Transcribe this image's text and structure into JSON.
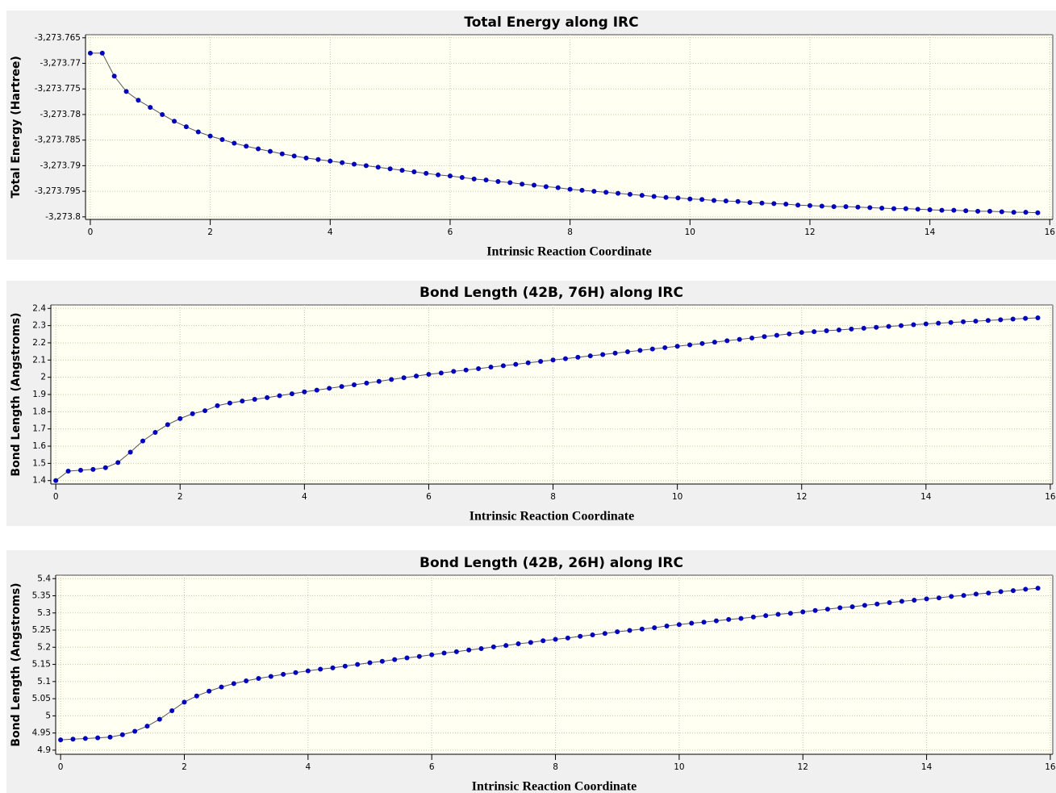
{
  "chart_data": [
    {
      "type": "line",
      "title": "Total Energy along IRC",
      "xlabel": "Intrinsic Reaction Coordinate",
      "ylabel": "Total Energy (Hartree)",
      "color": "#0000cc",
      "line_color": "#555555",
      "grid": true,
      "xlim": [
        -0.08,
        16.05
      ],
      "xticks": [
        0,
        2,
        4,
        6,
        8,
        10,
        12,
        14,
        16
      ],
      "ylim": [
        -3273.8005,
        -3273.7644
      ],
      "yticks": [
        {
          "value": -3273.765,
          "label": "-3,273.765"
        },
        {
          "value": -3273.77,
          "label": "-3,273.77"
        },
        {
          "value": -3273.775,
          "label": "-3,273.775"
        },
        {
          "value": -3273.78,
          "label": "-3,273.78"
        },
        {
          "value": -3273.785,
          "label": "-3,273.785"
        },
        {
          "value": -3273.79,
          "label": "-3,273.79"
        },
        {
          "value": -3273.795,
          "label": "-3,273.795"
        },
        {
          "value": -3273.8,
          "label": "-3,273.8"
        }
      ],
      "x": [
        0,
        0.2,
        0.4,
        0.6,
        0.8,
        1,
        1.2,
        1.4,
        1.6,
        1.8,
        2,
        2.2,
        2.4,
        2.6,
        2.8,
        3,
        3.2,
        3.4,
        3.6,
        3.8,
        4,
        4.2,
        4.4,
        4.6,
        4.8,
        5,
        5.2,
        5.4,
        5.6,
        5.8,
        6,
        6.2,
        6.4,
        6.6,
        6.8,
        7,
        7.2,
        7.4,
        7.6,
        7.8,
        8,
        8.2,
        8.4,
        8.6,
        8.8,
        9,
        9.2,
        9.4,
        9.6,
        9.8,
        10,
        10.2,
        10.4,
        10.6,
        10.8,
        11,
        11.2,
        11.4,
        11.6,
        11.8,
        12,
        12.2,
        12.4,
        12.6,
        12.8,
        13,
        13.2,
        13.4,
        13.6,
        13.8,
        14,
        14.2,
        14.4,
        14.6,
        14.8,
        15,
        15.2,
        15.4,
        15.6,
        15.8
      ],
      "values": [
        -3273.768,
        -3273.768,
        -3273.7725,
        -3273.7755,
        -3273.7772,
        -3273.7786,
        -3273.78,
        -3273.7813,
        -3273.7824,
        -3273.7834,
        -3273.7842,
        -3273.7849,
        -3273.7856,
        -3273.7862,
        -3273.7867,
        -3273.7872,
        -3273.7877,
        -3273.7881,
        -3273.7885,
        -3273.7888,
        -3273.7891,
        -3273.7894,
        -3273.7897,
        -3273.79,
        -3273.7903,
        -3273.7906,
        -3273.7909,
        -3273.7912,
        -3273.7915,
        -3273.7918,
        -3273.792,
        -3273.7923,
        -3273.7926,
        -3273.7928,
        -3273.7931,
        -3273.7933,
        -3273.7936,
        -3273.7938,
        -3273.7941,
        -3273.7943,
        -3273.7946,
        -3273.7948,
        -3273.795,
        -3273.7952,
        -3273.7954,
        -3273.7956,
        -3273.7958,
        -3273.796,
        -3273.7962,
        -3273.7963,
        -3273.7965,
        -3273.7966,
        -3273.7968,
        -3273.7969,
        -3273.797,
        -3273.7972,
        -3273.7973,
        -3273.7974,
        -3273.7975,
        -3273.7977,
        -3273.7978,
        -3273.7979,
        -3273.798,
        -3273.798,
        -3273.7981,
        -3273.7982,
        -3273.7983,
        -3273.7984,
        -3273.7984,
        -3273.7985,
        -3273.7986,
        -3273.7987,
        -3273.7987,
        -3273.7988,
        -3273.7989,
        -3273.7989,
        -3273.799,
        -3273.7991,
        -3273.7991,
        -3273.7992
      ]
    },
    {
      "type": "line",
      "title": "Bond Length (42B, 76H) along IRC",
      "xlabel": "Intrinsic Reaction Coordinate",
      "ylabel": "Bond Length (Angstroms)",
      "color": "#0000cc",
      "line_color": "#555555",
      "grid": true,
      "xlim": [
        -0.08,
        16.04
      ],
      "xticks": [
        0,
        2,
        4,
        6,
        8,
        10,
        12,
        14,
        16
      ],
      "ylim": [
        1.38,
        2.42
      ],
      "yticks": [
        1.4,
        1.5,
        1.6,
        1.7,
        1.8,
        1.9,
        2,
        2.1,
        2.2,
        2.3,
        2.4
      ],
      "x": [
        0,
        0.2,
        0.4,
        0.6,
        0.8,
        1,
        1.2,
        1.4,
        1.6,
        1.8,
        2,
        2.2,
        2.4,
        2.6,
        2.8,
        3,
        3.2,
        3.4,
        3.6,
        3.8,
        4,
        4.2,
        4.4,
        4.6,
        4.8,
        5,
        5.2,
        5.4,
        5.6,
        5.8,
        6,
        6.2,
        6.4,
        6.6,
        6.8,
        7,
        7.2,
        7.4,
        7.6,
        7.8,
        8,
        8.2,
        8.4,
        8.6,
        8.8,
        9,
        9.2,
        9.4,
        9.6,
        9.8,
        10,
        10.2,
        10.4,
        10.6,
        10.8,
        11,
        11.2,
        11.4,
        11.6,
        11.8,
        12,
        12.2,
        12.4,
        12.6,
        12.8,
        13,
        13.2,
        13.4,
        13.6,
        13.8,
        14,
        14.2,
        14.4,
        14.6,
        14.8,
        15,
        15.2,
        15.4,
        15.6,
        15.8
      ],
      "values": [
        1.4,
        1.455,
        1.46,
        1.465,
        1.475,
        1.505,
        1.565,
        1.63,
        1.68,
        1.725,
        1.76,
        1.788,
        1.806,
        1.835,
        1.85,
        1.862,
        1.872,
        1.882,
        1.893,
        1.904,
        1.915,
        1.925,
        1.936,
        1.946,
        1.956,
        1.966,
        1.976,
        1.987,
        1.997,
        2.007,
        2.017,
        2.025,
        2.034,
        2.042,
        2.05,
        2.059,
        2.067,
        2.075,
        2.084,
        2.092,
        2.1,
        2.108,
        2.116,
        2.124,
        2.132,
        2.14,
        2.148,
        2.156,
        2.164,
        2.172,
        2.18,
        2.188,
        2.196,
        2.204,
        2.212,
        2.22,
        2.228,
        2.236,
        2.244,
        2.252,
        2.26,
        2.265,
        2.27,
        2.275,
        2.28,
        2.285,
        2.29,
        2.295,
        2.3,
        2.305,
        2.31,
        2.314,
        2.318,
        2.322,
        2.326,
        2.33,
        2.334,
        2.338,
        2.342,
        2.345
      ]
    },
    {
      "type": "line",
      "title": "Bond Length (42B, 26H) along IRC",
      "xlabel": "Intrinsic Reaction Coordinate",
      "ylabel": "Bond Length (Angstroms)",
      "color": "#0000cc",
      "line_color": "#555555",
      "grid": true,
      "xlim": [
        -0.08,
        16.04
      ],
      "xticks": [
        0,
        2,
        4,
        6,
        8,
        10,
        12,
        14,
        16
      ],
      "ylim": [
        4.888,
        5.41
      ],
      "yticks": [
        4.9,
        4.95,
        5,
        5.05,
        5.1,
        5.15,
        5.2,
        5.25,
        5.3,
        5.35,
        5.4
      ],
      "x": [
        0,
        0.2,
        0.4,
        0.6,
        0.8,
        1,
        1.2,
        1.4,
        1.6,
        1.8,
        2,
        2.2,
        2.4,
        2.6,
        2.8,
        3,
        3.2,
        3.4,
        3.6,
        3.8,
        4,
        4.2,
        4.4,
        4.6,
        4.8,
        5,
        5.2,
        5.4,
        5.6,
        5.8,
        6,
        6.2,
        6.4,
        6.6,
        6.8,
        7,
        7.2,
        7.4,
        7.6,
        7.8,
        8,
        8.2,
        8.4,
        8.6,
        8.8,
        9,
        9.2,
        9.4,
        9.6,
        9.8,
        10,
        10.2,
        10.4,
        10.6,
        10.8,
        11,
        11.2,
        11.4,
        11.6,
        11.8,
        12,
        12.2,
        12.4,
        12.6,
        12.8,
        13,
        13.2,
        13.4,
        13.6,
        13.8,
        14,
        14.2,
        14.4,
        14.6,
        14.8,
        15,
        15.2,
        15.4,
        15.6,
        15.8
      ],
      "values": [
        4.93,
        4.932,
        4.934,
        4.936,
        4.938,
        4.945,
        4.955,
        4.97,
        4.99,
        5.015,
        5.04,
        5.058,
        5.072,
        5.084,
        5.094,
        5.102,
        5.109,
        5.115,
        5.121,
        5.126,
        5.131,
        5.136,
        5.14,
        5.145,
        5.15,
        5.155,
        5.159,
        5.164,
        5.169,
        5.173,
        5.178,
        5.183,
        5.187,
        5.192,
        5.196,
        5.201,
        5.205,
        5.21,
        5.214,
        5.219,
        5.223,
        5.227,
        5.232,
        5.236,
        5.24,
        5.245,
        5.249,
        5.253,
        5.257,
        5.262,
        5.266,
        5.27,
        5.273,
        5.277,
        5.281,
        5.284,
        5.288,
        5.292,
        5.296,
        5.299,
        5.303,
        5.307,
        5.311,
        5.315,
        5.318,
        5.322,
        5.326,
        5.33,
        5.334,
        5.337,
        5.341,
        5.344,
        5.348,
        5.351,
        5.355,
        5.358,
        5.362,
        5.365,
        5.369,
        5.372
      ]
    }
  ]
}
